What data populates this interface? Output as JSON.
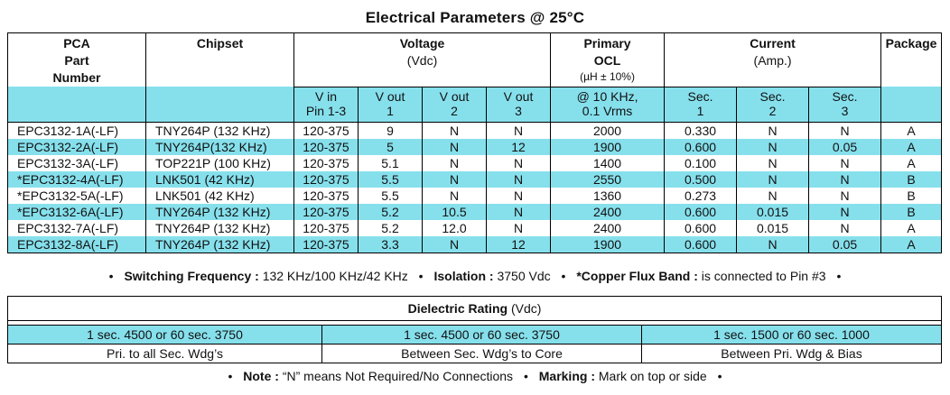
{
  "title": "Electrical Parameters @ 25°C",
  "params_table": {
    "headers": {
      "part": [
        "PCA",
        "Part",
        "Number"
      ],
      "chipset": "Chipset",
      "voltage": "Voltage",
      "voltage_unit": "(Vdc)",
      "primary": [
        "Primary",
        "OCL"
      ],
      "primary_unit": "(µH ± 10%)",
      "current": "Current",
      "current_unit": "(Amp.)",
      "package": "Package"
    },
    "subheaders": {
      "vin": [
        "V in",
        "Pin 1-3"
      ],
      "vout1": [
        "V out",
        "1"
      ],
      "vout2": [
        "V out",
        "2"
      ],
      "vout3": [
        "V out",
        "3"
      ],
      "ocl": [
        "@ 10 KHz,",
        "0.1 Vrms"
      ],
      "sec1": [
        "Sec.",
        "1"
      ],
      "sec2": [
        "Sec.",
        "2"
      ],
      "sec3": [
        "Sec.",
        "3"
      ]
    },
    "rows": [
      [
        "EPC3132-1A(-LF)",
        "TNY264P (132 KHz)",
        "120-375",
        "9",
        "N",
        "N",
        "2000",
        "0.330",
        "N",
        "N",
        "A"
      ],
      [
        "EPC3132-2A(-LF)",
        "TNY264P(132 KHz)",
        "120-375",
        "5",
        "N",
        "12",
        "1900",
        "0.600",
        "N",
        "0.05",
        "A"
      ],
      [
        "EPC3132-3A(-LF)",
        "TOP221P (100 KHz)",
        "120-375",
        "5.1",
        "N",
        "N",
        "1400",
        "0.100",
        "N",
        "N",
        "A"
      ],
      [
        "*EPC3132-4A(-LF)",
        "LNK501 (42 KHz)",
        "120-375",
        "5.5",
        "N",
        "N",
        "2550",
        "0.500",
        "N",
        "N",
        "B"
      ],
      [
        "*EPC3132-5A(-LF)",
        "LNK501 (42 KHz)",
        "120-375",
        "5.5",
        "N",
        "N",
        "1360",
        "0.273",
        "N",
        "N",
        "B"
      ],
      [
        "*EPC3132-6A(-LF)",
        "TNY264P (132 KHz)",
        "120-375",
        "5.2",
        "10.5",
        "N",
        "2400",
        "0.600",
        "0.015",
        "N",
        "B"
      ],
      [
        "EPC3132-7A(-LF)",
        "TNY264P (132 KHz)",
        "120-375",
        "5.2",
        "12.0",
        "N",
        "2400",
        "0.600",
        "0.015",
        "N",
        "A"
      ],
      [
        "EPC3132-8A(-LF)",
        "TNY264P (132 KHz)",
        "120-375",
        "3.3",
        "N",
        "12",
        "1900",
        "0.600",
        "N",
        "0.05",
        "A"
      ]
    ]
  },
  "note1": {
    "sf_label": "Switching Frequency :",
    "sf_value": "132 KHz/100 KHz/42 KHz",
    "iso_label": "Isolation :",
    "iso_value": "3750 Vdc",
    "cfb_label": "*Copper Flux Band :",
    "cfb_value": "is connected to Pin #3"
  },
  "dielectric": {
    "title": "Dielectric Rating",
    "unit": "(Vdc)",
    "values": [
      "1 sec. 4500 or 60 sec. 3750",
      "1 sec. 4500 or 60 sec. 3750",
      "1 sec. 1500 or 60 sec. 1000"
    ],
    "labels": [
      "Pri. to all Sec. Wdg’s",
      "Between Sec. Wdg’s to Core",
      "Between Pri.  Wdg & Bias"
    ]
  },
  "note2": {
    "note_label": "Note :",
    "note_value": "“N” means Not Required/No Connections",
    "marking_label": "Marking :",
    "marking_value": "Mark on top or side"
  },
  "bullet": "•"
}
